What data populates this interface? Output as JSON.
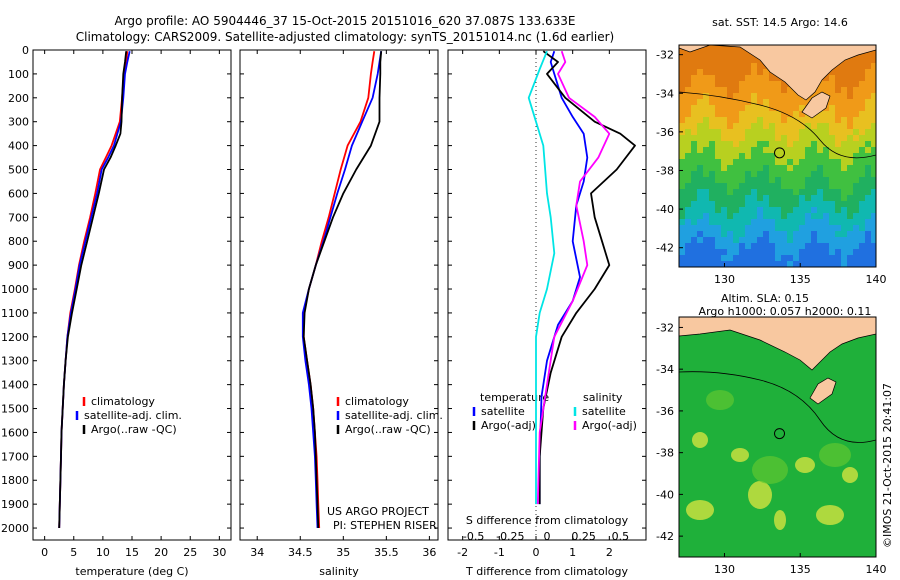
{
  "header": {
    "line1": "Argo profile: AO 5904446_37 15-Oct-2015 20151016_620 37.087S 133.633E",
    "line2": "Climatology: CARS2009. Satellite-adjusted climatology: synTS_20151014.nc (1.6d earlier)"
  },
  "colors": {
    "climatology": "#ff0000",
    "satellite": "#0000ff",
    "argo": "#000000",
    "sat_salinity": "#00e5e5",
    "argo_salinity": "#ff00ff"
  },
  "chart_data": [
    {
      "type": "line",
      "xlabel": "temperature (deg C)",
      "xlim": [
        -2,
        32
      ],
      "xticks": [
        "0",
        "5",
        "10",
        "15",
        "20",
        "25",
        "30"
      ],
      "ylim": [
        2050,
        0
      ],
      "yticks": [
        "0",
        "100",
        "200",
        "300",
        "400",
        "500",
        "600",
        "700",
        "800",
        "900",
        "1000",
        "1100",
        "1200",
        "1300",
        "1400",
        "1500",
        "1600",
        "1700",
        "1800",
        "1900",
        "2000"
      ],
      "legend": [
        "climatology",
        "satellite-adj. clim.",
        "Argo(..raw -QC)"
      ],
      "series": [
        {
          "name": "climatology",
          "color": "#ff0000",
          "points": [
            [
              14.2,
              5
            ],
            [
              14.0,
              50
            ],
            [
              13.6,
              100
            ],
            [
              13.3,
              200
            ],
            [
              12.9,
              300
            ],
            [
              11.5,
              400
            ],
            [
              10.5,
              450
            ],
            [
              9.5,
              500
            ],
            [
              8.7,
              600
            ],
            [
              7.8,
              700
            ],
            [
              6.8,
              800
            ],
            [
              5.9,
              900
            ],
            [
              5.2,
              1000
            ],
            [
              4.4,
              1100
            ],
            [
              3.9,
              1200
            ],
            [
              3.6,
              1300
            ],
            [
              3.3,
              1400
            ],
            [
              3.1,
              1500
            ],
            [
              2.9,
              1600
            ],
            [
              2.8,
              1700
            ],
            [
              2.7,
              1800
            ],
            [
              2.6,
              1900
            ],
            [
              2.5,
              2000
            ]
          ]
        },
        {
          "name": "satellite-adj. clim.",
          "color": "#0000ff",
          "points": [
            [
              14.6,
              5
            ],
            [
              14.2,
              50
            ],
            [
              13.8,
              100
            ],
            [
              13.5,
              200
            ],
            [
              13.1,
              300
            ],
            [
              11.9,
              400
            ],
            [
              10.9,
              450
            ],
            [
              9.8,
              500
            ],
            [
              9.0,
              600
            ],
            [
              8.0,
              700
            ],
            [
              7.0,
              800
            ],
            [
              6.0,
              900
            ],
            [
              5.3,
              1000
            ],
            [
              4.5,
              1100
            ],
            [
              3.9,
              1200
            ],
            [
              3.6,
              1300
            ],
            [
              3.3,
              1400
            ],
            [
              3.1,
              1500
            ],
            [
              2.9,
              1600
            ],
            [
              2.8,
              1700
            ],
            [
              2.7,
              1800
            ],
            [
              2.6,
              1900
            ],
            [
              2.5,
              2000
            ]
          ]
        },
        {
          "name": "Argo(..raw -QC)",
          "color": "#000000",
          "points": [
            [
              14.0,
              5
            ],
            [
              13.8,
              50
            ],
            [
              13.5,
              100
            ],
            [
              13.3,
              200
            ],
            [
              13.2,
              300
            ],
            [
              13.0,
              350
            ],
            [
              12.2,
              400
            ],
            [
              11.3,
              450
            ],
            [
              10.2,
              500
            ],
            [
              9.3,
              600
            ],
            [
              8.3,
              700
            ],
            [
              7.3,
              800
            ],
            [
              6.3,
              900
            ],
            [
              5.5,
              1000
            ],
            [
              4.7,
              1100
            ],
            [
              4.0,
              1200
            ],
            [
              3.6,
              1300
            ],
            [
              3.3,
              1400
            ],
            [
              3.1,
              1500
            ],
            [
              2.9,
              1600
            ],
            [
              2.8,
              1700
            ],
            [
              2.7,
              1800
            ],
            [
              2.6,
              1900
            ],
            [
              2.5,
              2000
            ]
          ]
        }
      ]
    },
    {
      "type": "line",
      "xlabel": "salinity",
      "xlim": [
        33.8,
        36.1
      ],
      "xticks": [
        "34",
        "34.5",
        "35",
        "35.5",
        "36"
      ],
      "ylim": [
        2050,
        0
      ],
      "legend": [
        "climatology",
        "satellite-adj. clim.",
        "Argo(..raw -QC)"
      ],
      "annotation": [
        "US ARGO PROJECT",
        "PI: STEPHEN RISER"
      ],
      "series": [
        {
          "name": "climatology",
          "color": "#ff0000",
          "points": [
            [
              35.36,
              5
            ],
            [
              35.34,
              50
            ],
            [
              35.32,
              100
            ],
            [
              35.29,
              200
            ],
            [
              35.2,
              300
            ],
            [
              35.05,
              400
            ],
            [
              34.97,
              500
            ],
            [
              34.9,
              600
            ],
            [
              34.83,
              700
            ],
            [
              34.75,
              800
            ],
            [
              34.68,
              900
            ],
            [
              34.6,
              1000
            ],
            [
              34.54,
              1100
            ],
            [
              34.54,
              1200
            ],
            [
              34.58,
              1300
            ],
            [
              34.62,
              1400
            ],
            [
              34.65,
              1500
            ],
            [
              34.67,
              1600
            ],
            [
              34.69,
              1700
            ],
            [
              34.7,
              1800
            ],
            [
              34.71,
              1900
            ],
            [
              34.72,
              2000
            ]
          ]
        },
        {
          "name": "satellite-adj. clim.",
          "color": "#0000ff",
          "points": [
            [
              35.44,
              5
            ],
            [
              35.42,
              50
            ],
            [
              35.4,
              100
            ],
            [
              35.34,
              200
            ],
            [
              35.22,
              300
            ],
            [
              35.1,
              400
            ],
            [
              35.02,
              500
            ],
            [
              34.93,
              600
            ],
            [
              34.85,
              700
            ],
            [
              34.77,
              800
            ],
            [
              34.68,
              900
            ],
            [
              34.6,
              1000
            ],
            [
              34.53,
              1100
            ],
            [
              34.53,
              1200
            ],
            [
              34.56,
              1300
            ],
            [
              34.6,
              1400
            ],
            [
              34.63,
              1500
            ],
            [
              34.65,
              1600
            ],
            [
              34.67,
              1700
            ],
            [
              34.68,
              1800
            ],
            [
              34.69,
              1900
            ],
            [
              34.7,
              2000
            ]
          ]
        },
        {
          "name": "Argo(..raw -QC)",
          "color": "#000000",
          "points": [
            [
              35.44,
              5
            ],
            [
              35.43,
              50
            ],
            [
              35.43,
              100
            ],
            [
              35.42,
              200
            ],
            [
              35.42,
              300
            ],
            [
              35.32,
              400
            ],
            [
              35.15,
              500
            ],
            [
              35.0,
              600
            ],
            [
              34.88,
              700
            ],
            [
              34.78,
              800
            ],
            [
              34.68,
              900
            ],
            [
              34.6,
              1000
            ],
            [
              34.55,
              1100
            ],
            [
              34.54,
              1200
            ],
            [
              34.58,
              1300
            ],
            [
              34.62,
              1400
            ],
            [
              34.65,
              1500
            ],
            [
              34.67,
              1600
            ],
            [
              34.68,
              1700
            ],
            [
              34.69,
              1800
            ],
            [
              34.7,
              1900
            ],
            [
              34.71,
              2000
            ]
          ]
        }
      ]
    },
    {
      "type": "line",
      "xlabel": "T difference from climatology",
      "xlabel2": "S difference from climatology",
      "xlim": [
        -2.4,
        3
      ],
      "xticks": [
        "-2",
        "-1",
        "0",
        "1",
        "2"
      ],
      "xticks_top": [
        "-0.5",
        "-0.25",
        "0",
        "0.25",
        "0.5"
      ],
      "ylim": [
        2050,
        0
      ],
      "legend_titles": [
        "temperature",
        "salinity"
      ],
      "legend": [
        "satellite",
        "Argo(-adj)",
        "satellite",
        "Argo(-adj)"
      ],
      "series": [
        {
          "name": "satellite",
          "color": "#0000ff",
          "points": [
            [
              0.5,
              5
            ],
            [
              0.4,
              50
            ],
            [
              0.5,
              100
            ],
            [
              0.7,
              200
            ],
            [
              1.0,
              280
            ],
            [
              1.3,
              350
            ],
            [
              1.4,
              450
            ],
            [
              1.3,
              550
            ],
            [
              1.1,
              650
            ],
            [
              1.0,
              800
            ],
            [
              1.2,
              950
            ],
            [
              1.0,
              1050
            ],
            [
              0.6,
              1150
            ],
            [
              0.3,
              1300
            ],
            [
              0.15,
              1450
            ],
            [
              0.1,
              1700
            ],
            [
              0.1,
              1900
            ]
          ]
        },
        {
          "name": "Argo(-adj)",
          "color": "#000000",
          "points": [
            [
              0.2,
              5
            ],
            [
              0.6,
              50
            ],
            [
              0.3,
              100
            ],
            [
              0.8,
              200
            ],
            [
              1.6,
              300
            ],
            [
              2.3,
              350
            ],
            [
              2.7,
              400
            ],
            [
              2.2,
              500
            ],
            [
              1.5,
              600
            ],
            [
              1.6,
              700
            ],
            [
              1.8,
              800
            ],
            [
              2.0,
              900
            ],
            [
              1.6,
              1000
            ],
            [
              1.1,
              1100
            ],
            [
              0.7,
              1200
            ],
            [
              0.4,
              1350
            ],
            [
              0.2,
              1500
            ],
            [
              0.1,
              1700
            ],
            [
              0.1,
              1900
            ]
          ]
        },
        {
          "name": "satellite",
          "color": "#00e5e5",
          "points": [
            [
              0.3,
              5
            ],
            [
              0.1,
              80
            ],
            [
              -0.2,
              200
            ],
            [
              0.0,
              300
            ],
            [
              0.2,
              400
            ],
            [
              0.3,
              600
            ],
            [
              0.4,
              700
            ],
            [
              0.5,
              850
            ],
            [
              0.3,
              1000
            ],
            [
              0.1,
              1100
            ],
            [
              0.0,
              1200
            ],
            [
              0.0,
              1500
            ],
            [
              0.0,
              1900
            ]
          ]
        },
        {
          "name": "Argo(-adj)",
          "color": "#ff00ff",
          "points": [
            [
              0.7,
              5
            ],
            [
              0.8,
              50
            ],
            [
              0.6,
              100
            ],
            [
              0.9,
              200
            ],
            [
              1.6,
              280
            ],
            [
              2.0,
              350
            ],
            [
              1.7,
              450
            ],
            [
              1.2,
              550
            ],
            [
              1.1,
              650
            ],
            [
              1.3,
              800
            ],
            [
              1.4,
              900
            ],
            [
              1.0,
              1050
            ],
            [
              0.5,
              1200
            ],
            [
              0.3,
              1400
            ],
            [
              0.1,
              1600
            ],
            [
              0.05,
              1900
            ]
          ]
        }
      ]
    },
    {
      "type": "heatmap",
      "title": "sat. SST: 14.5 Argo: 14.6",
      "xlim": [
        127,
        140
      ],
      "xticks": [
        "130",
        "135",
        "140"
      ],
      "ylim": [
        -43,
        -31.5
      ],
      "yticks": [
        "-32",
        "-34",
        "-36",
        "-38",
        "-40",
        "-42"
      ],
      "marker": {
        "lon": 133.633,
        "lat": -37.087
      }
    },
    {
      "type": "heatmap",
      "title": "Altim. SLA: 0.15",
      "subtitle": "Argo h1000: 0.057 h2000: 0.11",
      "xlim": [
        127,
        140
      ],
      "xticks": [
        "130",
        "135",
        "140"
      ],
      "ylim": [
        -43,
        -31.5
      ],
      "yticks": [
        "-32",
        "-34",
        "-36",
        "-38",
        "-40",
        "-42"
      ],
      "marker": {
        "lon": 133.633,
        "lat": -37.087
      }
    }
  ],
  "credit": "©IMOS 21-Oct-2015 20:41:07"
}
